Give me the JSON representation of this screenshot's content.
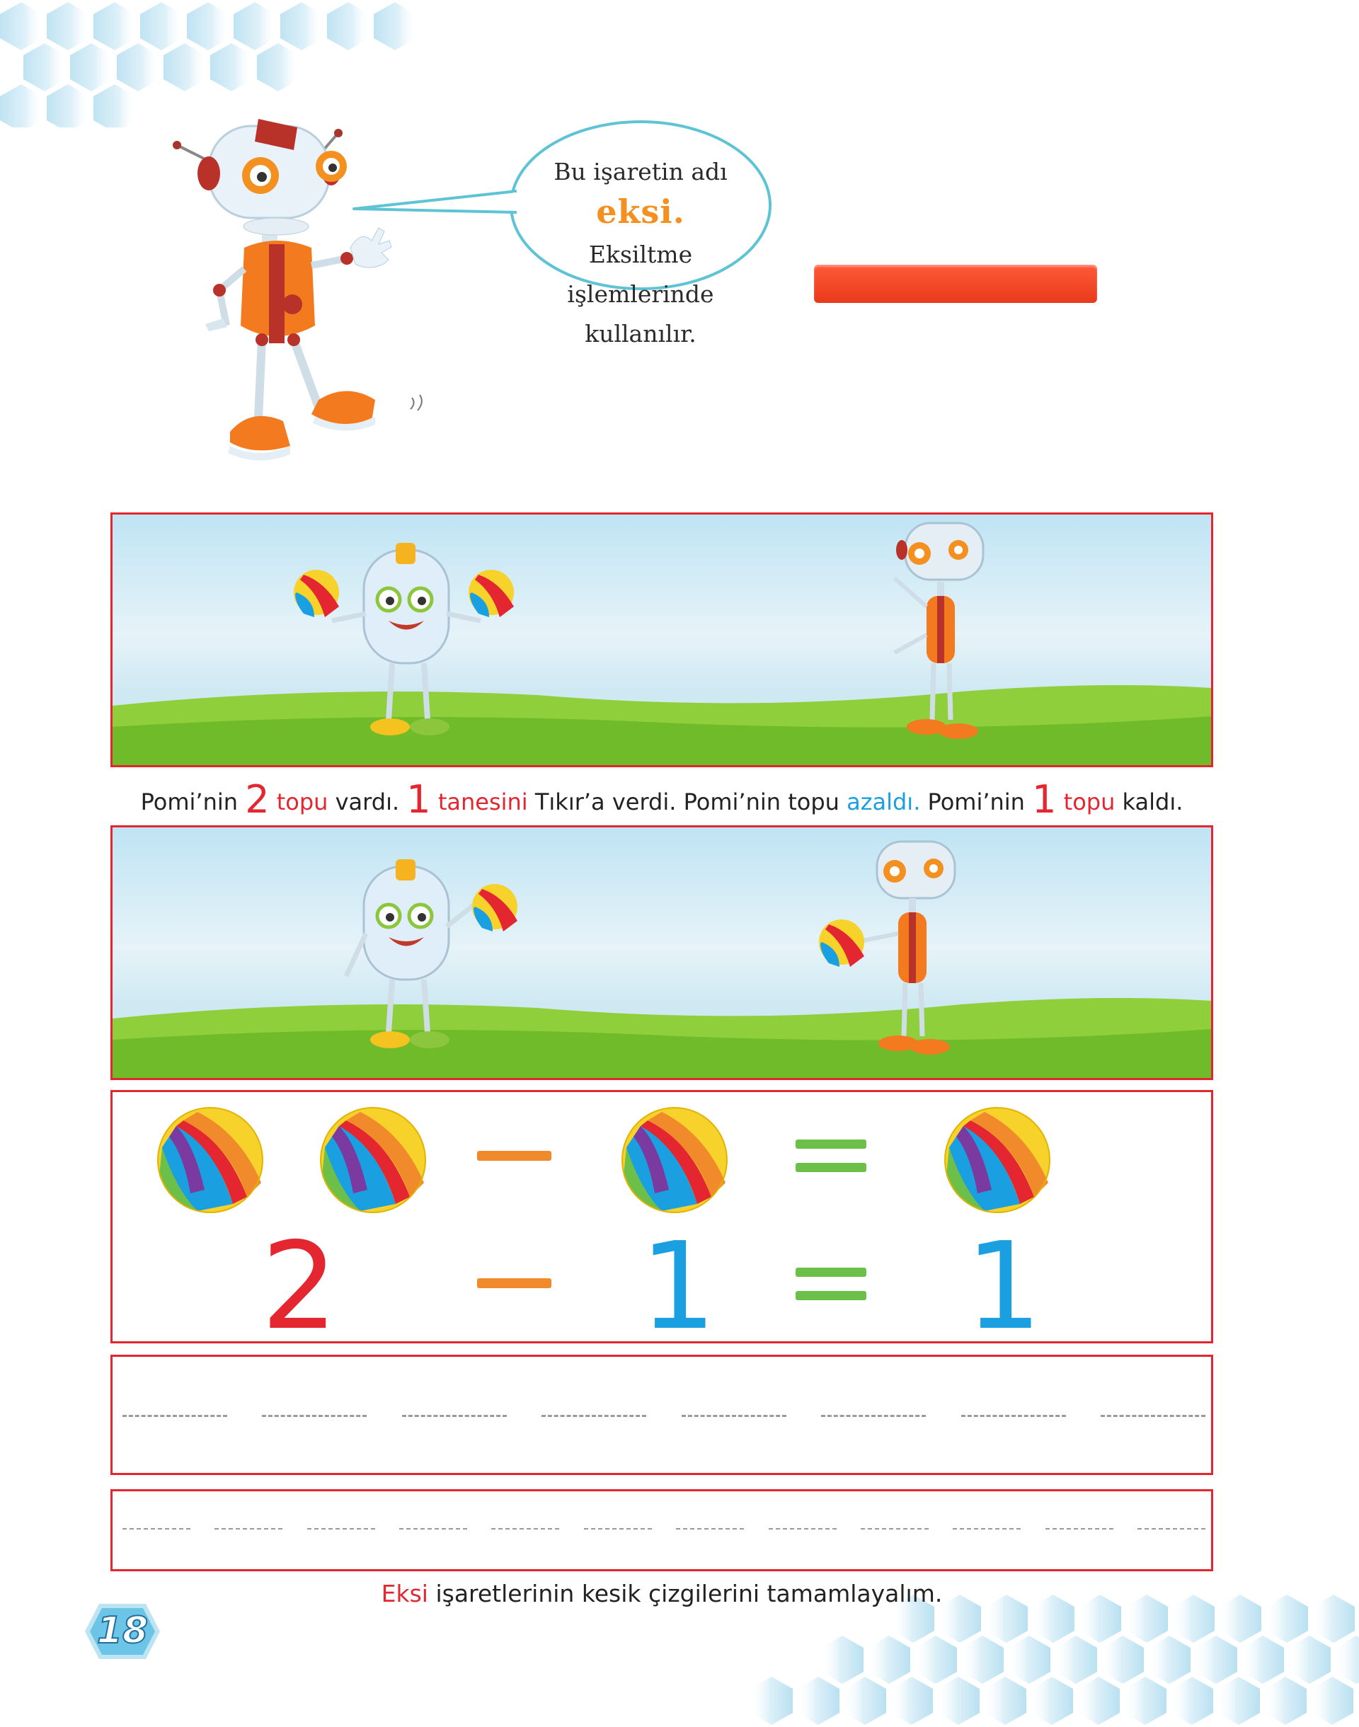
{
  "speech_bubble": {
    "line1_prefix": "Bu işaretin adı",
    "highlight": "eksi.",
    "line2": "Eksiltme işlemlerinde",
    "line3": "kullanılır."
  },
  "story": {
    "p1": "Pomi’nin ",
    "n1": "2",
    "w1": " topu",
    "p2": " vardı. ",
    "n2": "1",
    "w2": " tanesini",
    "p3": " Tıkır’a verdi. Pomi’nin topu ",
    "w3": "azaldı.",
    "p4": " Pomi’nin ",
    "n3": "1",
    "w4": " topu",
    "p5": " kaldı."
  },
  "equation": {
    "first": "2",
    "second": "1",
    "result": "1",
    "colors": {
      "first": "#e3262f",
      "second": "#1aa0e0",
      "result": "#1aa0e0",
      "minus": "#f08a2a",
      "equals": "#6cc04a"
    }
  },
  "instruction": {
    "highlight": "Eksi",
    "rest": " işaretlerinin kesik çizgilerini tamamlayalım."
  },
  "page_number": "18",
  "colors": {
    "frame": "#e3262f",
    "minus_bar": "#e83a1a",
    "bubble_border": "#5fc3d6"
  }
}
